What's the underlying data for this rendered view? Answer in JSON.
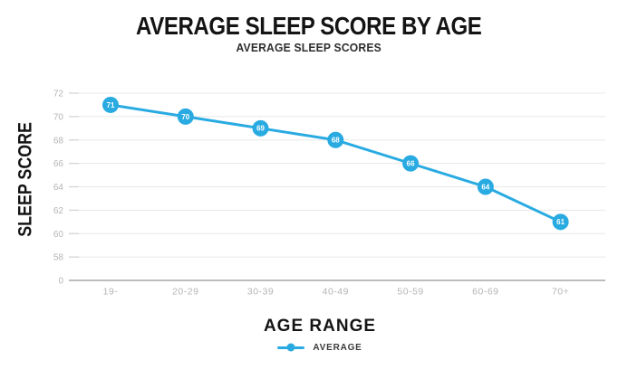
{
  "chart_data": {
    "type": "line",
    "title": "AVERAGE SLEEP SCORE BY AGE",
    "subtitle": "AVERAGE SLEEP SCORES",
    "xlabel": "AGE RANGE",
    "ylabel": "SLEEP SCORE",
    "categories": [
      "19-",
      "20-29",
      "30-39",
      "40-49",
      "50-59",
      "60-69",
      "70+"
    ],
    "series": [
      {
        "name": "AVERAGE",
        "values": [
          71,
          70,
          69,
          68,
          66,
          64,
          61
        ]
      }
    ],
    "point_labels": [
      "71",
      "70",
      "69",
      "68",
      "66",
      "64",
      "61"
    ],
    "yticks": [
      72,
      70,
      68,
      66,
      64,
      62,
      60,
      58,
      0
    ],
    "grid": "horizontal",
    "legend_position": "bottom-center",
    "colors": {
      "series_line": "#29abe2",
      "marker_fill": "#29abe2",
      "marker_label": "#ffffff",
      "gridline": "#e8e8e8",
      "axis_line": "#a6a6a6",
      "tick_label": "#b5b5b5",
      "title_text": "#141414",
      "background": "#ffffff"
    }
  }
}
